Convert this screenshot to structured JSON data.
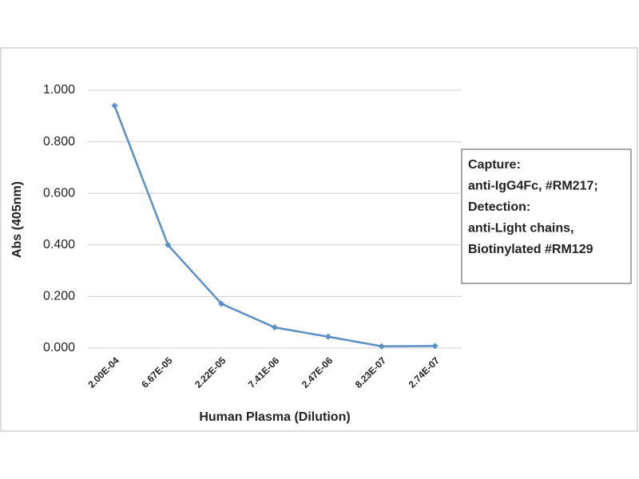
{
  "chart_data": {
    "type": "line",
    "x_label": "Human Plasma (Dilution)",
    "y_label": "Abs (405nm)",
    "annotation": [
      "Capture:",
      "anti-IgG4Fc, #RM217;",
      "Detection:",
      "anti-Light chains,",
      "Biotinylated #RM129"
    ],
    "categories": [
      "2.00E-04",
      "6.67E-05",
      "2.22E-05",
      "7.41E-06",
      "2.47E-06",
      "8.23E-07",
      "2.74E-07"
    ],
    "series": [
      {
        "name": "Abs",
        "color": "#5b8fc7",
        "values": [
          0.94,
          0.4,
          0.172,
          0.08,
          0.044,
          0.007,
          0.008
        ]
      }
    ],
    "ylim": [
      0,
      1
    ],
    "yticks": [
      {
        "value": 0,
        "label": "0.000"
      },
      {
        "value": 0.2,
        "label": "0.200"
      },
      {
        "value": 0.4,
        "label": "0.400"
      },
      {
        "value": 0.6,
        "label": "0.600"
      },
      {
        "value": 0.8,
        "label": "0.800"
      },
      {
        "value": 1,
        "label": "1.000"
      }
    ],
    "grid": true
  }
}
